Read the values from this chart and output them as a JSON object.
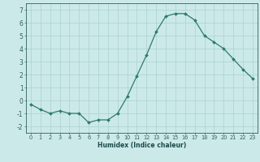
{
  "x": [
    0,
    1,
    2,
    3,
    4,
    5,
    6,
    7,
    8,
    9,
    10,
    11,
    12,
    13,
    14,
    15,
    16,
    17,
    18,
    19,
    20,
    21,
    22,
    23
  ],
  "y": [
    -0.3,
    -0.7,
    -1.0,
    -0.8,
    -1.0,
    -1.0,
    -1.7,
    -1.5,
    -1.5,
    -1.0,
    0.3,
    1.9,
    3.5,
    5.3,
    6.5,
    6.7,
    6.7,
    6.2,
    5.0,
    4.5,
    4.0,
    3.2,
    2.4,
    1.7
  ],
  "line_color": "#2d7a6e",
  "marker": "D",
  "markersize": 2.0,
  "linewidth": 0.9,
  "xlabel": "Humidex (Indice chaleur)",
  "xlim": [
    -0.5,
    23.5
  ],
  "ylim": [
    -2.5,
    7.5
  ],
  "yticks": [
    -2,
    -1,
    0,
    1,
    2,
    3,
    4,
    5,
    6,
    7
  ],
  "xticks": [
    0,
    1,
    2,
    3,
    4,
    5,
    6,
    7,
    8,
    9,
    10,
    11,
    12,
    13,
    14,
    15,
    16,
    17,
    18,
    19,
    20,
    21,
    22,
    23
  ],
  "bg_color": "#cce9e9",
  "grid_color": "#aad0d0",
  "tick_color": "#2d6060",
  "label_color": "#1a4a4a",
  "axis_color": "#2d6060",
  "xlabel_fontsize": 5.5,
  "ytick_fontsize": 5.5,
  "xtick_fontsize": 4.8
}
